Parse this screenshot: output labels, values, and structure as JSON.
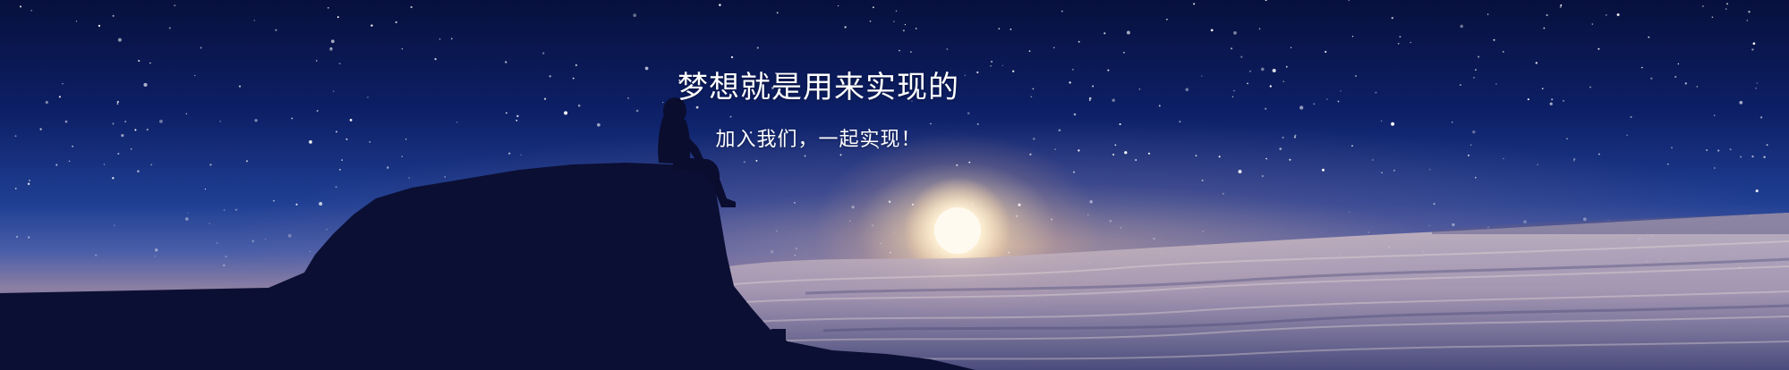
{
  "banner": {
    "headline": "梦想就是用来实现的",
    "subline": "加入我们，一起实现！"
  },
  "scene": {
    "sky_top": "#07103d",
    "sky_mid": "#1f3f93",
    "horizon_glow": "#e6b496",
    "sun": "#fff5dc",
    "silhouette": "#0b0f33"
  }
}
